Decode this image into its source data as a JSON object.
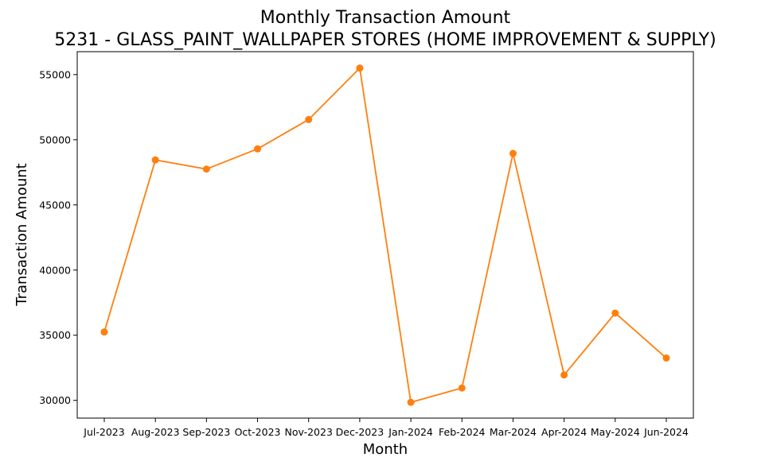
{
  "chart_data": {
    "type": "line",
    "title": "Monthly Transaction Amount",
    "subtitle": "5231 - GLASS_PAINT_WALLPAPER STORES (HOME IMPROVEMENT & SUPPLY)",
    "xlabel": "Month",
    "ylabel": "Transaction Amount",
    "categories": [
      "Jul-2023",
      "Aug-2023",
      "Sep-2023",
      "Oct-2023",
      "Nov-2023",
      "Dec-2023",
      "Jan-2024",
      "Feb-2024",
      "Mar-2024",
      "Apr-2024",
      "May-2024",
      "Jun-2024"
    ],
    "series": [
      {
        "values": [
          35250,
          48450,
          47750,
          49300,
          51550,
          55500,
          29850,
          30950,
          48950,
          31950,
          36700,
          33250
        ],
        "color": "#ff7f0e",
        "marker": "circle"
      }
    ],
    "yticks": [
      30000,
      35000,
      40000,
      45000,
      50000,
      55000
    ],
    "ylim": [
      28640,
      56760
    ],
    "grid": false,
    "legend": "none"
  }
}
